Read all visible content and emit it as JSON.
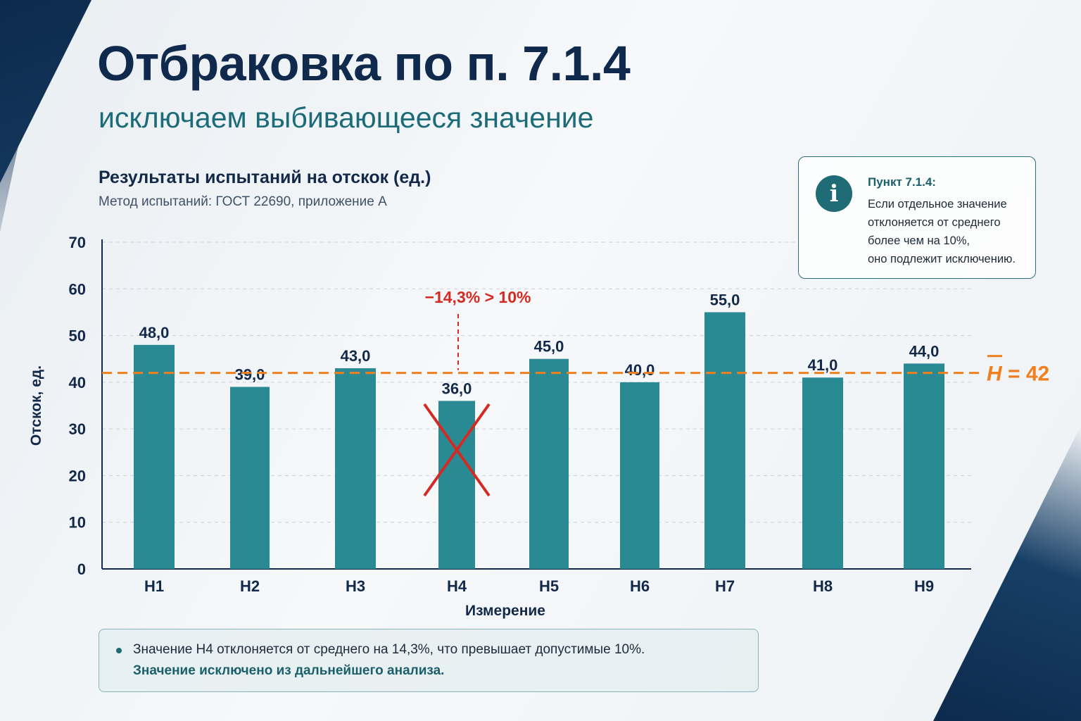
{
  "header": {
    "title": "Отбраковка по п. 7.1.4",
    "subtitle": "исключаем выбивающееся значение"
  },
  "info_box": {
    "icon": "info-icon",
    "icon_glyph": "i",
    "heading": "Пункт 7.1.4:",
    "lines": [
      "Если отдельное значение",
      "отклоняется от среднего",
      "более чем на 10%,",
      "оно подлежит исключению."
    ]
  },
  "note": {
    "line1": "Значение Н4 отклоняется от среднего на 14,3%, что превышает допустимые 10%.",
    "line2": "Значение исключено из дальнейшего анализа."
  },
  "colors": {
    "bar": "#2a8a93",
    "mean_line": "#f07f1e",
    "reject_mark": "#d32b24",
    "title": "#0f2a4d",
    "subtitle": "#1c6b78"
  },
  "chart_data": {
    "type": "bar",
    "title": "Результаты испытаний на отскок (ед.)",
    "subtitle": "Метод испытаний: ГОСТ 22690, приложение А",
    "xlabel": "Измерение",
    "ylabel": "Отскок, ед.",
    "ylim": [
      0,
      70
    ],
    "yticks": [
      0,
      10,
      20,
      30,
      40,
      50,
      60,
      70
    ],
    "grid": true,
    "categories": [
      "Н1",
      "Н2",
      "Н3",
      "Н4",
      "Н5",
      "Н6",
      "Н7",
      "Н8",
      "Н9"
    ],
    "values": [
      48.0,
      39.0,
      43.0,
      36.0,
      45.0,
      40.0,
      55.0,
      41.0,
      44.0
    ],
    "value_labels": [
      "48,0",
      "39,0",
      "43,0",
      "36,0",
      "45,0",
      "40,0",
      "55,0",
      "41,0",
      "44,0"
    ],
    "mean": {
      "value": 42,
      "label_symbol": "H",
      "label_text": " = 42"
    },
    "rejected": {
      "category": "Н4",
      "deviation_label": "−14,3% > 10%"
    }
  }
}
